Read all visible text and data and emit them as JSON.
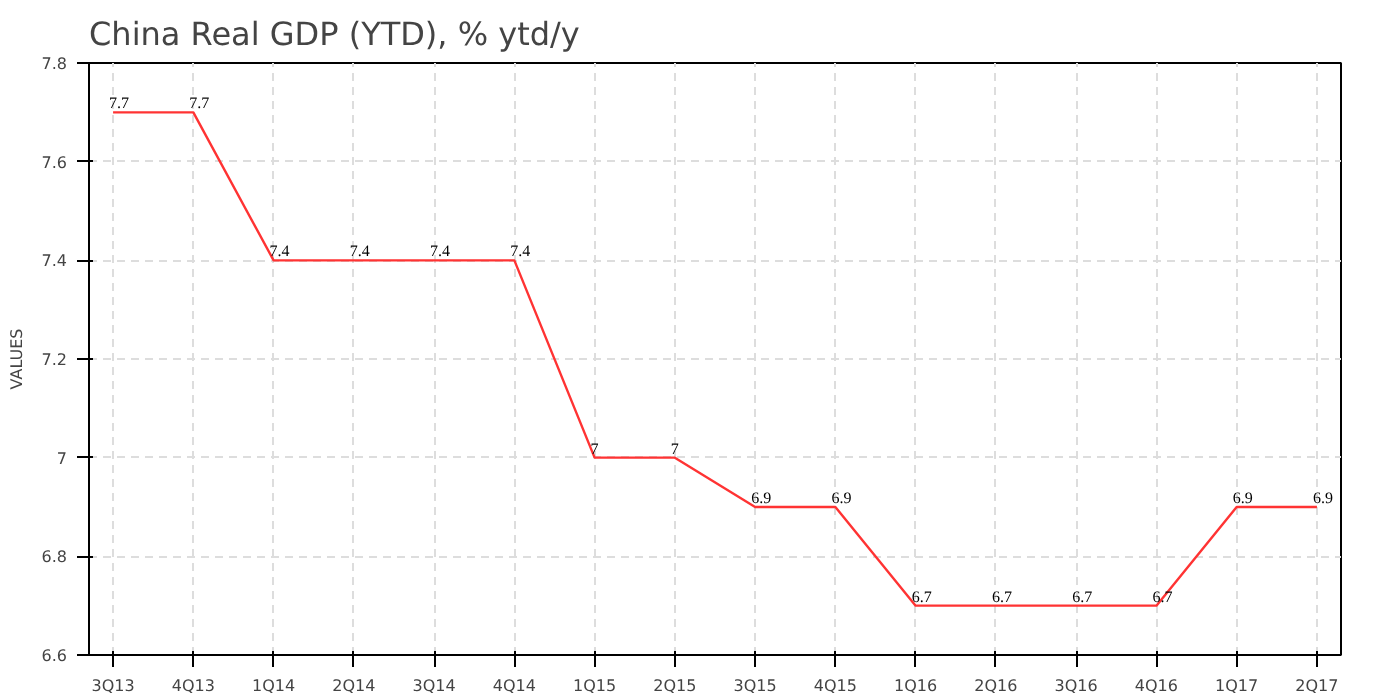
{
  "chart_data": {
    "type": "line",
    "title": "China Real GDP (YTD), % ytd/y",
    "ylabel": "VALUES",
    "categories": [
      "3Q13",
      "4Q13",
      "1Q14",
      "2Q14",
      "3Q14",
      "4Q14",
      "1Q15",
      "2Q15",
      "3Q15",
      "4Q15",
      "1Q16",
      "2Q16",
      "3Q16",
      "4Q16",
      "1Q17",
      "2Q17"
    ],
    "values": [
      7.7,
      7.7,
      7.4,
      7.4,
      7.4,
      7.4,
      7,
      7,
      6.9,
      6.9,
      6.7,
      6.7,
      6.7,
      6.7,
      6.9,
      6.9
    ],
    "color": "#ff3333",
    "ylim": [
      6.6,
      7.8
    ],
    "yticks": [
      6.6,
      6.8,
      7,
      7.2,
      7.4,
      7.6,
      7.8
    ],
    "grid": true,
    "data_labels": true,
    "line_style": "solid"
  }
}
